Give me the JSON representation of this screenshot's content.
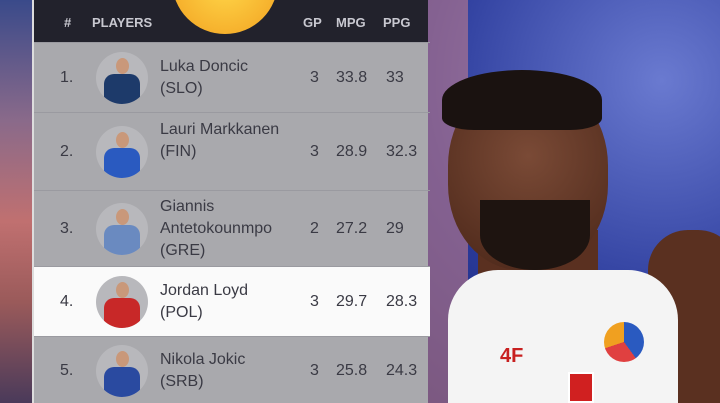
{
  "header": {
    "rank": "#",
    "players": "PLAYERS",
    "gp": "GP",
    "mpg": "MPG",
    "ppg": "PPG"
  },
  "rows": [
    {
      "rank": "1.",
      "name": "Luka Doncic",
      "country": "(SLO)",
      "gp": "3",
      "mpg": "33.8",
      "ppg": "33",
      "jersey": "#1d3a6a"
    },
    {
      "rank": "2.",
      "name": "Lauri Markkanen",
      "country": "(FIN)",
      "gp": "3",
      "mpg": "28.9",
      "ppg": "32.3",
      "jersey": "#2a5ac0"
    },
    {
      "rank": "3.",
      "name": "Giannis Antetokounmpo",
      "country": "(GRE)",
      "gp": "2",
      "mpg": "27.2",
      "ppg": "29",
      "jersey": "#6a8ac0"
    },
    {
      "rank": "4.",
      "name": "Jordan Loyd",
      "country": "(POL)",
      "gp": "3",
      "mpg": "29.7",
      "ppg": "28.3",
      "jersey": "#c82828"
    },
    {
      "rank": "5.",
      "name": "Nikola Jokic",
      "country": "(SRB)",
      "gp": "3",
      "mpg": "25.8",
      "ppg": "24.3",
      "jersey": "#2a4aa0"
    }
  ],
  "photo": {
    "jersey_text": "4F"
  }
}
